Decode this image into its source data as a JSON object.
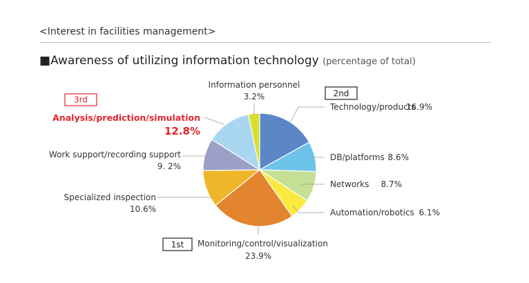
{
  "header": {
    "section_title": "<Interest in facilities management>",
    "chart_title_marker": "■",
    "chart_title": "Awareness of utilizing information technology",
    "chart_subtitle": "(percentage of total)"
  },
  "chart_data": {
    "type": "pie",
    "title": "Awareness of utilizing information technology",
    "subtitle": "(percentage of total)",
    "unit": "%",
    "slices": [
      {
        "name": "Technology/products",
        "value": 16.9,
        "value_label": "16.9%",
        "color": "#5b87c7",
        "rank": "2nd"
      },
      {
        "name": "DB/platforms",
        "value": 8.6,
        "value_label": "8.6%",
        "color": "#6ec3ea"
      },
      {
        "name": "Networks",
        "value": 8.7,
        "value_label": "8.7%",
        "color": "#c5df95"
      },
      {
        "name": "Automation/robotics",
        "value": 6.1,
        "value_label": "6.1%",
        "color": "#fbe93f"
      },
      {
        "name": "Monitoring/control/visualization",
        "value": 23.9,
        "value_label": "23.9%",
        "color": "#e2852e",
        "rank": "1st"
      },
      {
        "name": "Specialized inspection",
        "value": 10.6,
        "value_label": "10.6%",
        "color": "#f0b62b"
      },
      {
        "name": "Work support/recording support",
        "value": 9.2,
        "value_label": "9. 2%",
        "color": "#9c9fc8"
      },
      {
        "name": "Analysis/prediction/simulation",
        "value": 12.8,
        "value_label": "12.8%",
        "color": "#a9d7f2",
        "rank": "3rd",
        "highlight": true
      },
      {
        "name": "Information personnel",
        "value": 3.2,
        "value_label": "3.2%",
        "color": "#d9dd2f"
      }
    ],
    "rank_colors": {
      "3rd": "#e0262c",
      "2nd": "#222222",
      "1st": "#222222"
    }
  }
}
